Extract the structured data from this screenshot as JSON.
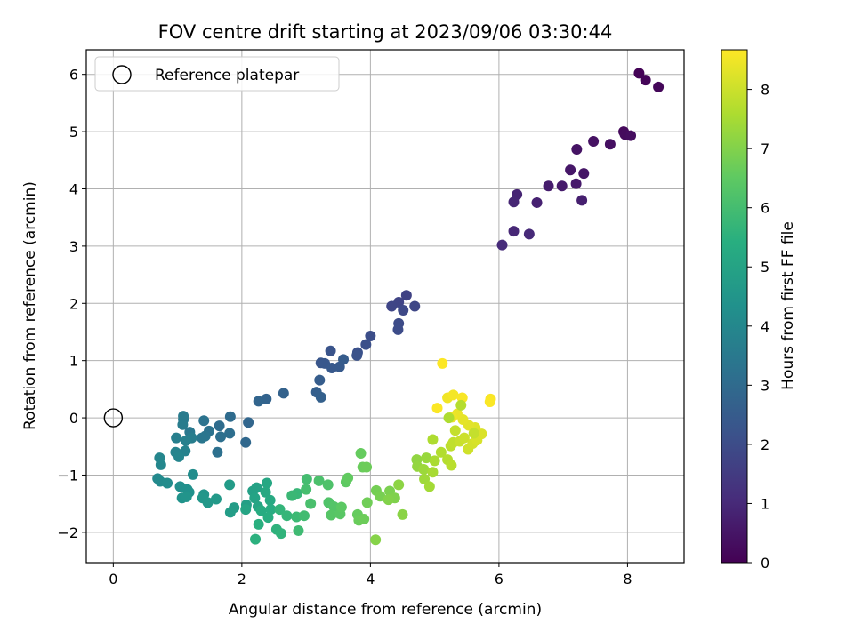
{
  "chart_data": {
    "type": "scatter",
    "title": "FOV centre drift starting at 2023/09/06 03:30:44",
    "xlabel": "Angular distance from reference (arcmin)",
    "ylabel": "Rotation from reference (arcmin)",
    "xlim": [
      -0.42,
      8.88
    ],
    "ylim": [
      -2.53,
      6.43
    ],
    "xticks": [
      0,
      2,
      4,
      6,
      8
    ],
    "yticks": [
      -2,
      -1,
      0,
      1,
      2,
      3,
      4,
      5,
      6
    ],
    "grid": true,
    "legend": {
      "placement": "top-left",
      "entries": [
        "Reference platepar"
      ]
    },
    "reference_point": {
      "x": 0,
      "y": 0,
      "marker": "open-circle"
    },
    "colorbar": {
      "label": "Hours from first FF file",
      "min": 0,
      "max": 8.67,
      "ticks": [
        0,
        1,
        2,
        3,
        4,
        5,
        6,
        7,
        8
      ],
      "colormap": "viridis",
      "stops": [
        "#440154",
        "#472d7b",
        "#3b528b",
        "#2c728e",
        "#21918c",
        "#28ae80",
        "#5ec962",
        "#addc30",
        "#fde725"
      ]
    },
    "points": [
      [
        8.18,
        6.02,
        0.05
      ],
      [
        8.28,
        5.9,
        0.1
      ],
      [
        8.48,
        5.78,
        0.15
      ],
      [
        7.94,
        5.0,
        0.2
      ],
      [
        7.96,
        4.95,
        0.25
      ],
      [
        8.05,
        4.93,
        0.3
      ],
      [
        7.73,
        4.78,
        0.35
      ],
      [
        7.47,
        4.83,
        0.4
      ],
      [
        7.21,
        4.69,
        0.45
      ],
      [
        7.32,
        4.27,
        0.5
      ],
      [
        7.11,
        4.33,
        0.55
      ],
      [
        7.2,
        4.09,
        0.6
      ],
      [
        6.98,
        4.05,
        0.65
      ],
      [
        6.77,
        4.05,
        0.7
      ],
      [
        7.29,
        3.8,
        0.75
      ],
      [
        6.59,
        3.76,
        0.8
      ],
      [
        6.28,
        3.9,
        0.85
      ],
      [
        6.23,
        3.77,
        0.9
      ],
      [
        6.23,
        3.26,
        0.95
      ],
      [
        6.47,
        3.21,
        1.0
      ],
      [
        6.05,
        3.02,
        1.05
      ],
      [
        4.56,
        2.14,
        1.7
      ],
      [
        4.44,
        2.02,
        1.75
      ],
      [
        4.33,
        1.95,
        1.8
      ],
      [
        4.69,
        1.95,
        1.85
      ],
      [
        4.51,
        1.88,
        1.9
      ],
      [
        4.44,
        1.65,
        1.95
      ],
      [
        4.43,
        1.54,
        2.0
      ],
      [
        4.0,
        1.43,
        2.05
      ],
      [
        3.93,
        1.28,
        2.1
      ],
      [
        3.8,
        1.14,
        2.15
      ],
      [
        3.79,
        1.09,
        2.2
      ],
      [
        3.38,
        1.17,
        2.25
      ],
      [
        3.23,
        0.96,
        2.3
      ],
      [
        3.29,
        0.95,
        2.35
      ],
      [
        3.4,
        0.87,
        2.4
      ],
      [
        3.52,
        0.89,
        2.45
      ],
      [
        3.58,
        1.02,
        2.5
      ],
      [
        3.21,
        0.66,
        2.55
      ],
      [
        3.16,
        0.45,
        2.6
      ],
      [
        3.23,
        0.36,
        2.65
      ],
      [
        2.65,
        0.43,
        2.7
      ],
      [
        2.38,
        0.33,
        2.75
      ],
      [
        2.26,
        0.29,
        2.8
      ],
      [
        2.1,
        -0.08,
        2.85
      ],
      [
        2.06,
        -0.43,
        2.9
      ],
      [
        1.82,
        0.02,
        3.0
      ],
      [
        1.65,
        -0.14,
        3.05
      ],
      [
        1.81,
        -0.27,
        3.1
      ],
      [
        1.67,
        -0.33,
        3.15
      ],
      [
        1.62,
        -0.6,
        3.2
      ],
      [
        1.49,
        -0.23,
        3.25
      ],
      [
        1.41,
        -0.05,
        3.3
      ],
      [
        1.43,
        -0.32,
        3.35
      ],
      [
        1.38,
        -0.35,
        3.4
      ],
      [
        1.19,
        -0.25,
        3.45
      ],
      [
        1.09,
        -0.03,
        3.5
      ],
      [
        1.09,
        0.03,
        3.55
      ],
      [
        1.08,
        -0.12,
        3.6
      ],
      [
        1.22,
        -0.35,
        3.65
      ],
      [
        0.98,
        -0.35,
        3.7
      ],
      [
        1.13,
        -0.4,
        3.75
      ],
      [
        1.12,
        -0.58,
        3.8
      ],
      [
        0.97,
        -0.6,
        3.85
      ],
      [
        1.02,
        -0.68,
        3.9
      ],
      [
        0.72,
        -0.7,
        3.95
      ],
      [
        0.74,
        -0.82,
        4.0
      ],
      [
        0.69,
        -1.06,
        4.05
      ],
      [
        0.73,
        -1.11,
        4.1
      ],
      [
        0.84,
        -1.14,
        4.15
      ],
      [
        1.24,
        -0.99,
        4.2
      ],
      [
        1.04,
        -1.2,
        4.25
      ],
      [
        1.15,
        -1.25,
        4.3
      ],
      [
        1.18,
        -1.3,
        4.35
      ],
      [
        1.07,
        -1.4,
        4.4
      ],
      [
        1.14,
        -1.38,
        4.45
      ],
      [
        1.41,
        -1.34,
        4.5
      ],
      [
        1.39,
        -1.4,
        4.55
      ],
      [
        1.47,
        -1.48,
        4.6
      ],
      [
        1.6,
        -1.42,
        4.65
      ],
      [
        1.81,
        -1.17,
        4.7
      ],
      [
        1.88,
        -1.57,
        4.75
      ],
      [
        1.82,
        -1.65,
        4.8
      ],
      [
        2.07,
        -1.52,
        4.85
      ],
      [
        2.17,
        -1.28,
        4.9
      ],
      [
        2.23,
        -1.22,
        4.95
      ],
      [
        2.2,
        -1.4,
        5.0
      ],
      [
        2.06,
        -1.6,
        5.05
      ],
      [
        2.25,
        -1.55,
        5.1
      ],
      [
        2.39,
        -1.14,
        5.15
      ],
      [
        2.37,
        -1.3,
        5.2
      ],
      [
        2.44,
        -1.44,
        5.25
      ],
      [
        2.3,
        -1.62,
        5.3
      ],
      [
        2.45,
        -1.6,
        5.35
      ],
      [
        2.41,
        -1.74,
        5.4
      ],
      [
        2.26,
        -1.86,
        5.45
      ],
      [
        2.21,
        -2.12,
        5.5
      ],
      [
        2.54,
        -1.95,
        5.55
      ],
      [
        2.61,
        -2.02,
        5.6
      ],
      [
        2.59,
        -1.6,
        5.65
      ],
      [
        2.7,
        -1.71,
        5.7
      ],
      [
        2.86,
        -1.32,
        5.75
      ],
      [
        2.78,
        -1.36,
        5.8
      ],
      [
        2.85,
        -1.73,
        5.85
      ],
      [
        2.88,
        -1.97,
        5.9
      ],
      [
        2.97,
        -1.71,
        5.95
      ],
      [
        3.01,
        -1.07,
        6.0
      ],
      [
        3.0,
        -1.25,
        6.05
      ],
      [
        3.07,
        -1.5,
        6.1
      ],
      [
        3.2,
        -1.1,
        6.15
      ],
      [
        3.34,
        -1.17,
        6.2
      ],
      [
        3.35,
        -1.48,
        6.25
      ],
      [
        3.43,
        -1.55,
        6.3
      ],
      [
        3.39,
        -1.7,
        6.35
      ],
      [
        3.53,
        -1.68,
        6.4
      ],
      [
        3.55,
        -1.56,
        6.45
      ],
      [
        3.62,
        -1.12,
        6.5
      ],
      [
        3.65,
        -1.05,
        6.55
      ],
      [
        3.8,
        -1.69,
        6.6
      ],
      [
        3.82,
        -1.79,
        6.65
      ],
      [
        3.9,
        -1.77,
        6.7
      ],
      [
        3.95,
        -1.48,
        6.75
      ],
      [
        4.09,
        -1.27,
        6.8
      ],
      [
        4.15,
        -1.37,
        6.85
      ],
      [
        4.3,
        -1.28,
        6.9
      ],
      [
        4.38,
        -1.4,
        6.95
      ],
      [
        4.28,
        -1.43,
        7.0
      ],
      [
        4.08,
        -2.13,
        7.05
      ],
      [
        4.5,
        -1.69,
        7.1
      ],
      [
        4.44,
        -1.17,
        7.15
      ],
      [
        3.85,
        -0.62,
        6.6
      ],
      [
        3.88,
        -0.86,
        6.65
      ],
      [
        3.94,
        -0.86,
        6.7
      ],
      [
        4.72,
        -0.73,
        7.2
      ],
      [
        4.73,
        -0.85,
        7.25
      ],
      [
        4.87,
        -0.7,
        7.3
      ],
      [
        4.83,
        -0.9,
        7.35
      ],
      [
        4.84,
        -1.07,
        7.4
      ],
      [
        4.92,
        -1.2,
        7.45
      ],
      [
        4.97,
        -0.95,
        7.5
      ],
      [
        5.0,
        -0.75,
        7.55
      ],
      [
        4.97,
        -0.38,
        7.6
      ],
      [
        5.1,
        -0.6,
        7.65
      ],
      [
        5.2,
        -0.73,
        7.7
      ],
      [
        5.26,
        -0.83,
        7.75
      ],
      [
        5.25,
        -0.49,
        7.8
      ],
      [
        5.29,
        -0.43,
        7.85
      ],
      [
        5.32,
        -0.22,
        7.9
      ],
      [
        5.39,
        -0.41,
        7.95
      ],
      [
        5.46,
        -0.35,
        8.0
      ],
      [
        5.52,
        -0.55,
        8.05
      ],
      [
        5.59,
        -0.45,
        8.1
      ],
      [
        5.66,
        -0.39,
        8.15
      ],
      [
        5.73,
        -0.28,
        8.2
      ],
      [
        5.63,
        -0.17,
        8.25
      ],
      [
        5.53,
        -0.13,
        8.3
      ],
      [
        5.44,
        -0.03,
        8.35
      ],
      [
        5.35,
        0.07,
        8.4
      ],
      [
        5.27,
        0.01,
        8.45
      ],
      [
        5.2,
        0.35,
        8.5
      ],
      [
        5.29,
        0.4,
        8.55
      ],
      [
        5.43,
        0.35,
        8.6
      ],
      [
        5.87,
        0.33,
        8.62
      ],
      [
        5.86,
        0.28,
        8.63
      ],
      [
        5.04,
        0.17,
        8.64
      ],
      [
        5.12,
        0.95,
        8.66
      ],
      [
        5.41,
        0.22,
        7.7
      ],
      [
        5.61,
        -0.27,
        7.9
      ],
      [
        5.22,
        0.0,
        7.6
      ]
    ]
  }
}
